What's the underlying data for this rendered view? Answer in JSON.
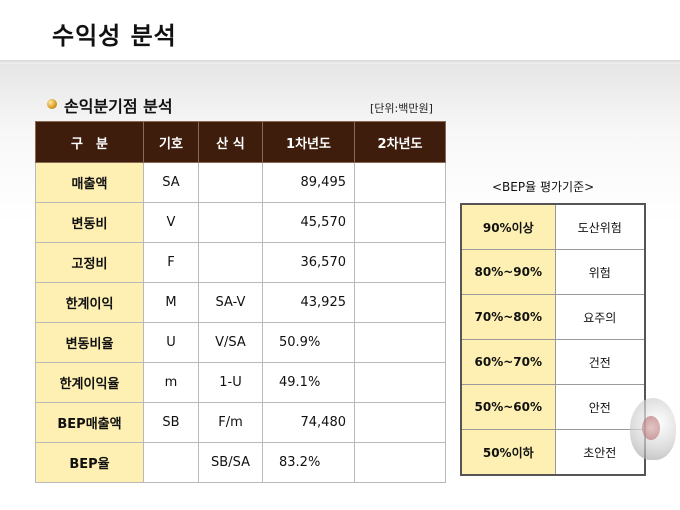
{
  "slide": {
    "title": "수익성 분석"
  },
  "section": {
    "title": "손익분기점 분석",
    "unit": "[단위:백만원]"
  },
  "main_table": {
    "headers": [
      "구　분",
      "기호",
      "산 식",
      "1차년도",
      "2차년도"
    ],
    "rows": [
      {
        "item": "매출액",
        "symbol": "SA",
        "formula": "",
        "year1": "89,495",
        "year2": ""
      },
      {
        "item": "변동비",
        "symbol": "V",
        "formula": "",
        "year1": "45,570",
        "year2": ""
      },
      {
        "item": "고정비",
        "symbol": "F",
        "formula": "",
        "year1": "36,570",
        "year2": ""
      },
      {
        "item": "한계이익",
        "symbol": "M",
        "formula": "SA-V",
        "year1": "43,925",
        "year2": ""
      },
      {
        "item": "변동비율",
        "symbol": "U",
        "formula": "V/SA",
        "year1": "50.9%",
        "year2": ""
      },
      {
        "item": "한계이익율",
        "symbol": "m",
        "formula": "1-U",
        "year1": "49.1%",
        "year2": ""
      },
      {
        "item": "BEP매출액",
        "symbol": "SB",
        "formula": "F/m",
        "year1": "74,480",
        "year2": ""
      },
      {
        "item": "BEP율",
        "symbol": "",
        "formula": "SB/SA",
        "year1": "83.2%",
        "year2": ""
      }
    ]
  },
  "bep_criteria": {
    "caption": "<BEP율 평가기준>",
    "rows": [
      {
        "range": "90%이상",
        "grade": "도산위험"
      },
      {
        "range": "80%~90%",
        "grade": "위험"
      },
      {
        "range": "70%~80%",
        "grade": "요주의"
      },
      {
        "range": "60%~70%",
        "grade": "건전"
      },
      {
        "range": "50%~60%",
        "grade": "안전"
      },
      {
        "range": "50%이하",
        "grade": "초안전"
      }
    ]
  },
  "colors": {
    "header_bg": "#3e1d0c",
    "category_bg": "#fdf0b2",
    "bullet": "#d89a1c"
  }
}
